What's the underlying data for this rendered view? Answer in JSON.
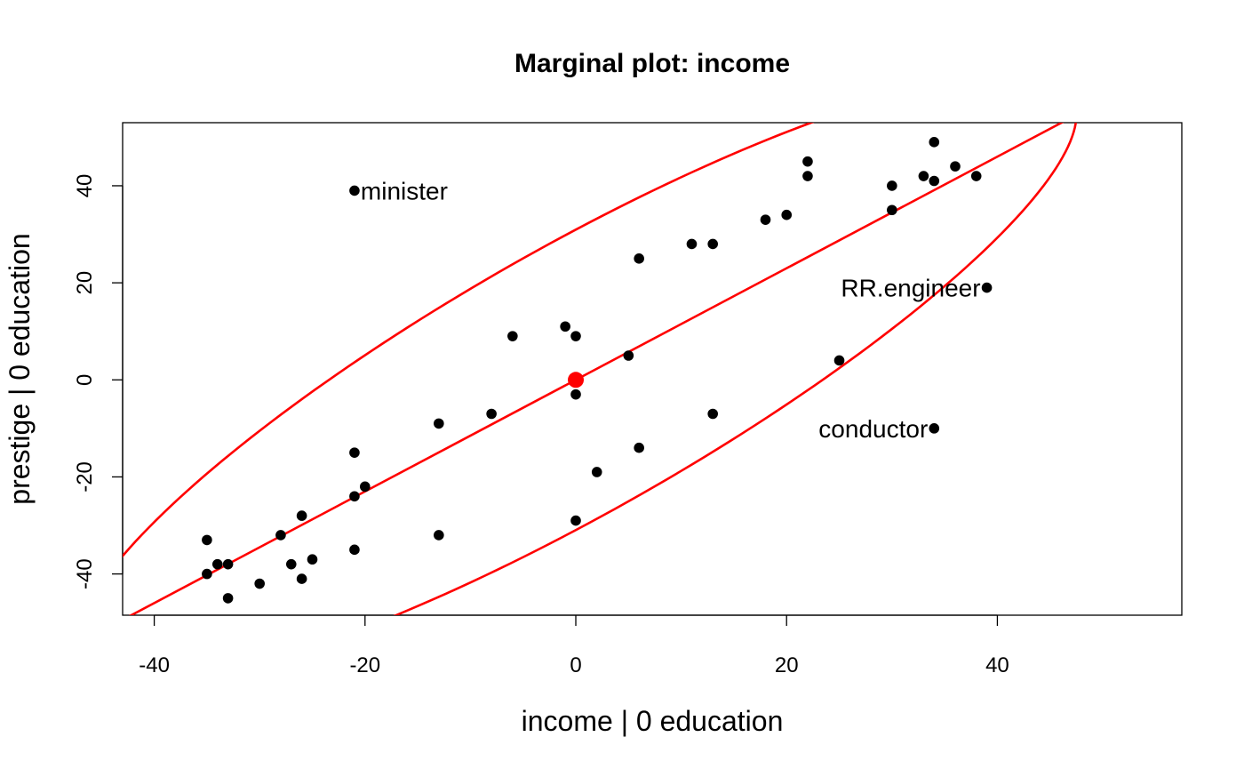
{
  "chart_data": {
    "type": "scatter",
    "title": "Marginal plot: income",
    "xlabel": "income |  0 education",
    "ylabel": "prestige |  0 education",
    "xlim": [
      -43,
      57.5
    ],
    "ylim": [
      -48.5,
      53
    ],
    "xticks": [
      -40,
      -20,
      0,
      20,
      40
    ],
    "yticks": [
      -40,
      -20,
      0,
      20,
      40
    ],
    "grid": false,
    "legend": "none",
    "point_color": "#000000",
    "accent_color": "#ff0000",
    "points": [
      {
        "x": -35,
        "y": -33
      },
      {
        "x": -35,
        "y": -40
      },
      {
        "x": -34,
        "y": -38
      },
      {
        "x": -33,
        "y": -38
      },
      {
        "x": -33,
        "y": -45
      },
      {
        "x": -30,
        "y": -42
      },
      {
        "x": -28,
        "y": -32
      },
      {
        "x": -27,
        "y": -38
      },
      {
        "x": -26,
        "y": -28
      },
      {
        "x": -26,
        "y": -41
      },
      {
        "x": -25,
        "y": -37
      },
      {
        "x": -21,
        "y": -15
      },
      {
        "x": -21,
        "y": -24
      },
      {
        "x": -21,
        "y": -35
      },
      {
        "x": -20,
        "y": -22
      },
      {
        "x": -21,
        "y": 39,
        "label": "minister"
      },
      {
        "x": -13,
        "y": -9
      },
      {
        "x": -13,
        "y": -32
      },
      {
        "x": -8,
        "y": -7
      },
      {
        "x": -6,
        "y": 9
      },
      {
        "x": -1,
        "y": 11
      },
      {
        "x": 0,
        "y": 9
      },
      {
        "x": 0,
        "y": -3
      },
      {
        "x": 0,
        "y": -29
      },
      {
        "x": 2,
        "y": -19
      },
      {
        "x": 5,
        "y": 5
      },
      {
        "x": 6,
        "y": 25
      },
      {
        "x": 6,
        "y": -14
      },
      {
        "x": 11,
        "y": 28
      },
      {
        "x": 13,
        "y": 28
      },
      {
        "x": 13,
        "y": -7
      },
      {
        "x": 18,
        "y": 33
      },
      {
        "x": 20,
        "y": 34
      },
      {
        "x": 22,
        "y": 45
      },
      {
        "x": 22,
        "y": 42
      },
      {
        "x": 25,
        "y": 4
      },
      {
        "x": 30,
        "y": 40
      },
      {
        "x": 30,
        "y": 35
      },
      {
        "x": 33,
        "y": 42
      },
      {
        "x": 34,
        "y": 49
      },
      {
        "x": 34,
        "y": 41
      },
      {
        "x": 36,
        "y": 44
      },
      {
        "x": 38,
        "y": 42
      },
      {
        "x": 39,
        "y": 19,
        "label": "RR.engineer"
      },
      {
        "x": 34,
        "y": -10,
        "label": "conductor"
      }
    ],
    "center_point": {
      "x": 0,
      "y": 0
    },
    "regression_slope": 1.15,
    "ellipse": {
      "cx": 0,
      "cy": 0,
      "sx": 26.1,
      "sy": 34.5,
      "r": 0.87,
      "k": 1.82
    }
  }
}
